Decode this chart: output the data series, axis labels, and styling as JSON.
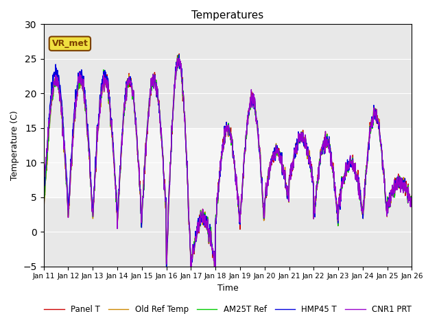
{
  "title": "Temperatures",
  "xlabel": "Time",
  "ylabel": "Temperature (C)",
  "ylim": [
    -5,
    30
  ],
  "annotation": "VR_met",
  "bg_color": "#e8e8e8",
  "fig_bg": "#ffffff",
  "shaded_region": [
    5,
    15
  ],
  "xtick_labels": [
    "Jan 11",
    "Jan 12",
    "Jan 13",
    "Jan 14",
    "Jan 15",
    "Jan 16",
    "Jan 17",
    "Jan 18",
    "Jan 19",
    "Jan 20",
    "Jan 21",
    "Jan 22",
    "Jan 23",
    "Jan 24",
    "Jan 25",
    "Jan 26"
  ],
  "legend_entries": [
    "Panel T",
    "Old Ref Temp",
    "AM25T Ref",
    "HMP45 T",
    "CNR1 PRT"
  ],
  "line_colors": [
    "#cc0000",
    "#cc8800",
    "#00cc00",
    "#0000dd",
    "#9900cc"
  ],
  "line_widths": [
    1.0,
    1.0,
    1.0,
    1.0,
    1.0
  ]
}
